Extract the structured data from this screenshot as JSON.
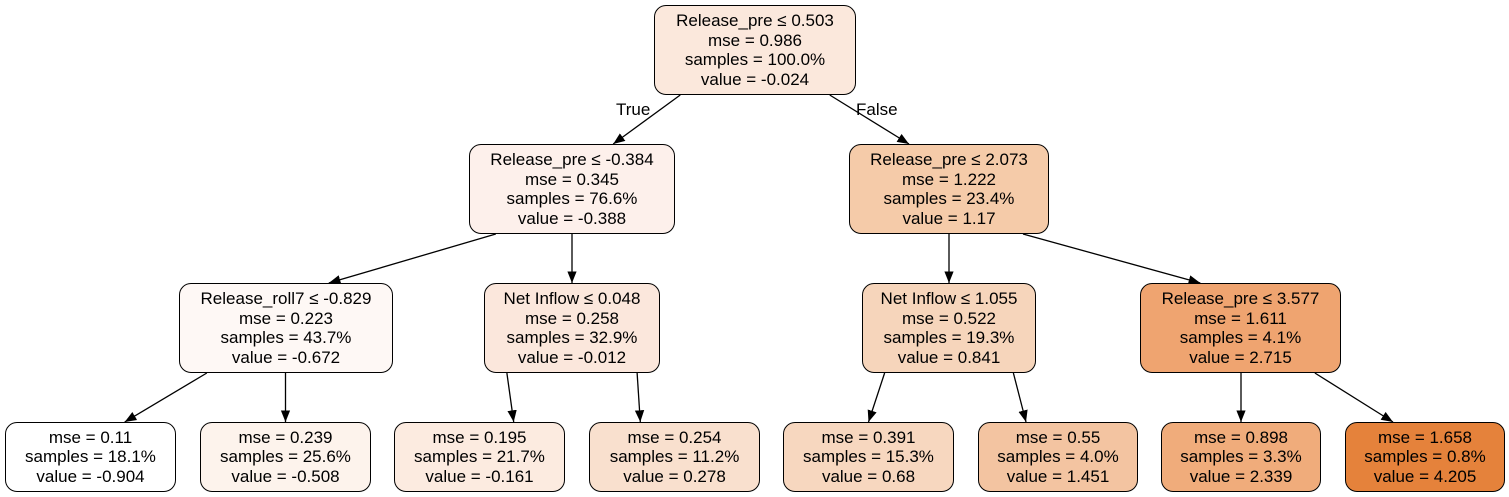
{
  "tree": {
    "labels": {
      "true_label": "True",
      "false_label": "False"
    },
    "nodes": {
      "root": {
        "lines": [
          "Release_pre ≤ 0.503",
          "mse = 0.986",
          "samples = 100.0%",
          "value = -0.024"
        ],
        "fill": "#fbe8dc"
      },
      "n_l": {
        "lines": [
          "Release_pre ≤ -0.384",
          "mse = 0.345",
          "samples = 76.6%",
          "value = -0.388"
        ],
        "fill": "#fdf0eb"
      },
      "n_r": {
        "lines": [
          "Release_pre ≤ 2.073",
          "mse = 1.222",
          "samples = 23.4%",
          "value = 1.17"
        ],
        "fill": "#f5cba9"
      },
      "n_ll": {
        "lines": [
          "Release_roll7 ≤ -0.829",
          "mse = 0.223",
          "samples = 43.7%",
          "value = -0.672"
        ],
        "fill": "#fef8f5"
      },
      "n_lr": {
        "lines": [
          "Net Inflow ≤ 0.048",
          "mse = 0.258",
          "samples = 32.9%",
          "value = -0.012"
        ],
        "fill": "#fbe7dc"
      },
      "n_rl": {
        "lines": [
          "Net Inflow ≤ 1.055",
          "mse = 0.522",
          "samples = 19.3%",
          "value = 0.841"
        ],
        "fill": "#f6d5bb"
      },
      "n_rr": {
        "lines": [
          "Release_pre ≤ 3.577",
          "mse = 1.611",
          "samples = 4.1%",
          "value = 2.715"
        ],
        "fill": "#efa470"
      },
      "leaf1": {
        "lines": [
          "mse = 0.11",
          "samples = 18.1%",
          "value = -0.904"
        ],
        "fill": "#ffffff"
      },
      "leaf2": {
        "lines": [
          "mse = 0.239",
          "samples = 25.6%",
          "value = -0.508"
        ],
        "fill": "#fdf3ec"
      },
      "leaf3": {
        "lines": [
          "mse = 0.195",
          "samples = 21.7%",
          "value = -0.161"
        ],
        "fill": "#fcebe0"
      },
      "leaf4": {
        "lines": [
          "mse = 0.254",
          "samples = 11.2%",
          "value = 0.278"
        ],
        "fill": "#f9e0ce"
      },
      "leaf5": {
        "lines": [
          "mse = 0.391",
          "samples = 15.3%",
          "value = 0.68"
        ],
        "fill": "#f7d7bf"
      },
      "leaf6": {
        "lines": [
          "mse = 0.55",
          "samples = 4.0%",
          "value = 1.451"
        ],
        "fill": "#f3c4a1"
      },
      "leaf7": {
        "lines": [
          "mse = 0.898",
          "samples = 3.3%",
          "value = 2.339"
        ],
        "fill": "#f0ac7b"
      },
      "leaf8": {
        "lines": [
          "mse = 1.658",
          "samples = 0.8%",
          "value = 4.205"
        ],
        "fill": "#e5823b"
      }
    },
    "edges": [
      [
        "root",
        "n_l"
      ],
      [
        "root",
        "n_r"
      ],
      [
        "n_l",
        "n_ll"
      ],
      [
        "n_l",
        "n_lr"
      ],
      [
        "n_r",
        "n_rl"
      ],
      [
        "n_r",
        "n_rr"
      ],
      [
        "n_ll",
        "leaf1"
      ],
      [
        "n_ll",
        "leaf2"
      ],
      [
        "n_lr",
        "leaf3"
      ],
      [
        "n_lr",
        "leaf4"
      ],
      [
        "n_rl",
        "leaf5"
      ],
      [
        "n_rl",
        "leaf6"
      ],
      [
        "n_rr",
        "leaf7"
      ],
      [
        "n_rr",
        "leaf8"
      ]
    ]
  }
}
